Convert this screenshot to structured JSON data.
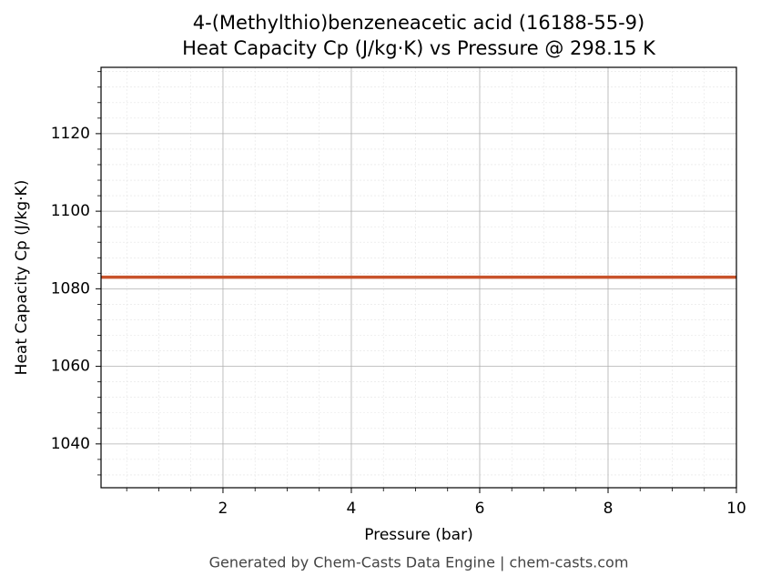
{
  "chart_data": {
    "type": "line",
    "title": "4-(Methylthio)benzeneacetic acid (16188-55-9)",
    "subtitle": "Heat Capacity Cp (J/kg·K) vs Pressure @ 298.15 K",
    "x_label": "Pressure (bar)",
    "y_label": "Heat Capacity Cp (J/kg·K)",
    "caption": "Generated by Chem-Casts Data Engine | chem-casts.com",
    "x": [
      0.1,
      10
    ],
    "series": [
      {
        "name": "Cp",
        "color": "#c8532b",
        "values": [
          1083,
          1083
        ]
      }
    ],
    "xlim": [
      0.1,
      10
    ],
    "ylim": [
      1028.7,
      1137.1
    ],
    "xticks": [
      2,
      4,
      6,
      8,
      10
    ],
    "yticks": [
      1040,
      1060,
      1080,
      1100,
      1120
    ],
    "xminorticks": [
      0.5,
      1,
      1.5,
      2.5,
      3,
      3.5,
      4.5,
      5,
      5.5,
      6.5,
      7,
      7.5,
      8.5,
      9,
      9.5
    ],
    "yminorticks": [
      1032,
      1036,
      1044,
      1048,
      1052,
      1056,
      1064,
      1068,
      1072,
      1076,
      1084,
      1088,
      1092,
      1096,
      1104,
      1108,
      1112,
      1116,
      1124,
      1128,
      1132,
      1136
    ],
    "grid": true
  }
}
